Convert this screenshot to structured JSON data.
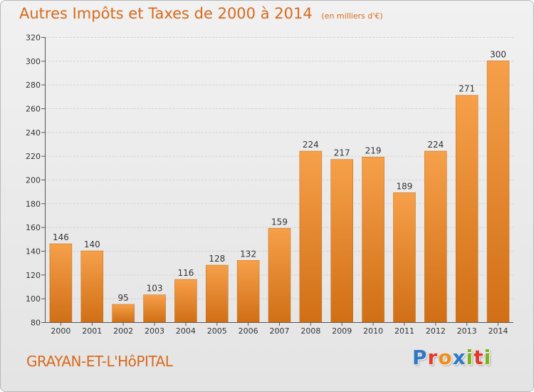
{
  "header": {
    "title": "Autres Impôts et Taxes de 2000 à 2014",
    "unit": "(en milliers d'€)"
  },
  "footer": {
    "commune": "GRAYAN-ET-L'HôPITAL",
    "brand": "Proxiti",
    "brand_colors": [
      "#2f78c4",
      "#e3392b",
      "#f08c1a",
      "#2f78c4",
      "#7ab51d",
      "#e3392b",
      "#7ab51d"
    ]
  },
  "colors": {
    "accent": "#d86a1c",
    "bar_light": "#f6a04a",
    "bar_dark": "#d06f16"
  },
  "chart_data": {
    "type": "bar",
    "title": "Autres Impôts et Taxes de 2000 à 2014",
    "subtitle": "(en milliers d'€)",
    "categories": [
      "2000",
      "2001",
      "2002",
      "2003",
      "2004",
      "2005",
      "2006",
      "2007",
      "2008",
      "2009",
      "2010",
      "2011",
      "2012",
      "2013",
      "2014"
    ],
    "values": [
      146,
      140,
      95,
      103,
      116,
      128,
      132,
      159,
      224,
      217,
      219,
      189,
      224,
      271,
      300
    ],
    "ylim": [
      80,
      320
    ],
    "yticks": [
      80,
      100,
      120,
      140,
      160,
      180,
      200,
      220,
      240,
      260,
      280,
      300,
      320
    ],
    "grid": true,
    "data_labels": true
  }
}
